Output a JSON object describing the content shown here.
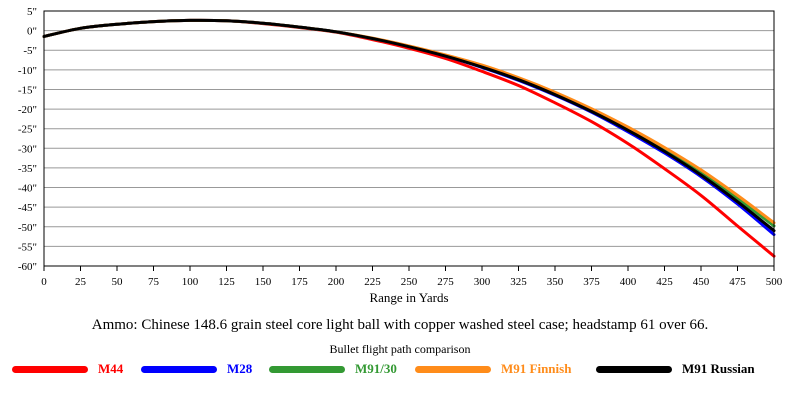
{
  "chart_data": {
    "type": "line",
    "title": "Bullet flight path comparison",
    "caption": "Ammo:  Chinese 148.6 grain steel core light ball with copper washed steel case; headstamp 61 over 66.",
    "xlabel": "Range in Yards",
    "ylabel": "",
    "xlim": [
      0,
      500
    ],
    "ylim": [
      -60,
      5
    ],
    "x_ticks": [
      0,
      25,
      50,
      75,
      100,
      125,
      150,
      175,
      200,
      225,
      250,
      275,
      300,
      325,
      350,
      375,
      400,
      425,
      450,
      475,
      500
    ],
    "y_ticks": [
      5,
      0,
      -5,
      -10,
      -15,
      -20,
      -25,
      -30,
      -35,
      -40,
      -45,
      -50,
      -55,
      -60
    ],
    "y_tick_labels": [
      "5\"",
      "0\"",
      "-5\"",
      "-10\"",
      "-15\"",
      "-20\"",
      "-25\"",
      "-30\"",
      "-35\"",
      "-40\"",
      "-45\"",
      "-50\"",
      "-55\"",
      "-60\""
    ],
    "grid": {
      "horizontal": true,
      "vertical": false
    },
    "legend_position": "bottom",
    "x": [
      0,
      25,
      50,
      75,
      100,
      125,
      150,
      175,
      200,
      225,
      250,
      275,
      300,
      325,
      350,
      375,
      400,
      425,
      450,
      475,
      500
    ],
    "series": [
      {
        "name": "M44",
        "color": "#ff0000",
        "values": [
          -1.5,
          0.6,
          1.6,
          2.3,
          2.6,
          2.5,
          1.8,
          0.8,
          -0.4,
          -2.3,
          -4.5,
          -7.1,
          -10.4,
          -14.0,
          -18.4,
          -23.2,
          -28.8,
          -35.2,
          -42.0,
          -49.8,
          -57.5
        ]
      },
      {
        "name": "M28",
        "color": "#0000ff",
        "values": [
          -1.5,
          0.6,
          1.6,
          2.3,
          2.6,
          2.5,
          1.9,
          0.9,
          -0.3,
          -2.0,
          -4.0,
          -6.5,
          -9.4,
          -12.7,
          -16.5,
          -20.8,
          -25.8,
          -31.2,
          -37.2,
          -44.2,
          -52.0
        ]
      },
      {
        "name": "M91/30",
        "color": "#339933",
        "values": [
          -1.5,
          0.6,
          1.6,
          2.3,
          2.6,
          2.5,
          1.9,
          0.9,
          -0.3,
          -2.0,
          -4.0,
          -6.3,
          -9.0,
          -12.2,
          -16.0,
          -20.2,
          -25.0,
          -30.3,
          -36.2,
          -42.8,
          -49.8
        ]
      },
      {
        "name": "M91 Finnish",
        "color": "#ff8c1a",
        "values": [
          -1.5,
          0.6,
          1.6,
          2.3,
          2.6,
          2.5,
          1.9,
          0.9,
          -0.3,
          -1.9,
          -3.9,
          -6.2,
          -8.8,
          -12.0,
          -15.7,
          -19.9,
          -24.6,
          -29.8,
          -35.5,
          -42.0,
          -49.0
        ]
      },
      {
        "name": "M91 Russian",
        "color": "#000000",
        "values": [
          -1.5,
          0.6,
          1.6,
          2.3,
          2.6,
          2.5,
          1.9,
          0.9,
          -0.3,
          -2.0,
          -4.1,
          -6.5,
          -9.3,
          -12.5,
          -16.3,
          -20.6,
          -25.4,
          -30.8,
          -36.8,
          -43.6,
          -51.0
        ]
      }
    ]
  }
}
